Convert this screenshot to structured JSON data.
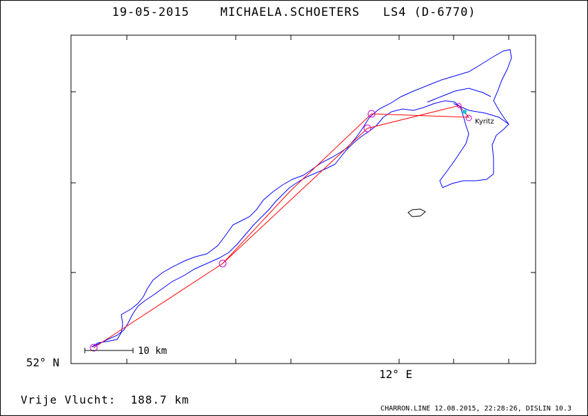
{
  "header": {
    "date": "19-05-2015",
    "pilot": "MICHAELA.SCHOETERS",
    "glider": "LS4 (D-6770)"
  },
  "axes": {
    "lat_label": "52° N",
    "lon_label": "12° E"
  },
  "scale_bar": {
    "label": "10 km"
  },
  "places": [
    {
      "name": "Kyritz"
    }
  ],
  "summary": {
    "label": "Vrije Vlucht:",
    "value": "188.7 km"
  },
  "footer": "CHARRON.LINE 12.08.2015, 22:28:26, DISLIN 10.3",
  "colors": {
    "track": "#0000ff",
    "task": "#ff0000",
    "turnpoint": "#cc00cc",
    "start": "#00cccc"
  }
}
